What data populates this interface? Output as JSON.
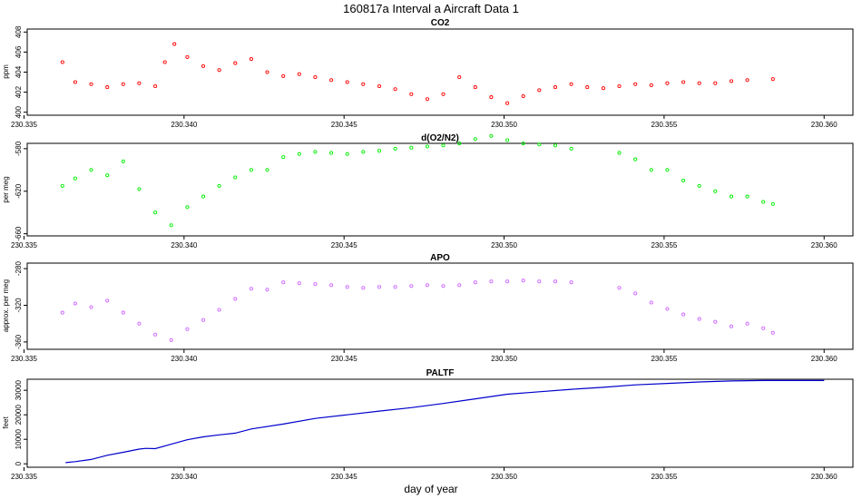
{
  "main_title": "160817a   Interval a Aircraft Data 1",
  "xlabel": "day of year",
  "chart_data": [
    {
      "type": "scatter",
      "title": "CO2",
      "ylabel": "ppm",
      "color": "#ff0000",
      "xlim": [
        230.3351,
        230.3609
      ],
      "ylim": [
        399.7,
        408.3
      ],
      "x_ticks": [
        230.335,
        230.34,
        230.345,
        230.35,
        230.355,
        230.36
      ],
      "x_tick_labels": [
        "230.335",
        "230.340",
        "230.345",
        "230.350",
        "230.355",
        "230.360"
      ],
      "y_ticks": [
        400,
        402,
        404,
        406,
        408
      ],
      "y_tick_labels": [
        "400",
        "402",
        "404",
        "406",
        "408"
      ],
      "grid": false,
      "x": [
        230.3362,
        230.3366,
        230.3371,
        230.3376,
        230.3381,
        230.3386,
        230.3391,
        230.3394,
        230.3397,
        230.3401,
        230.3406,
        230.3411,
        230.3416,
        230.3421,
        230.3426,
        230.3431,
        230.3436,
        230.3441,
        230.3446,
        230.3451,
        230.3456,
        230.3461,
        230.3466,
        230.3471,
        230.3476,
        230.3481,
        230.3486,
        230.3491,
        230.3496,
        230.3501,
        230.3506,
        230.3511,
        230.3516,
        230.3521,
        230.3526,
        230.3531,
        230.3536,
        230.3541,
        230.3546,
        230.3551,
        230.3556,
        230.3561,
        230.3566,
        230.3571,
        230.3576,
        230.3584
      ],
      "y": [
        405.0,
        403.0,
        402.8,
        402.5,
        402.8,
        402.9,
        402.6,
        405.0,
        406.8,
        405.5,
        404.6,
        404.2,
        404.9,
        405.3,
        404.0,
        403.6,
        403.8,
        403.5,
        403.2,
        403.0,
        402.8,
        402.6,
        402.3,
        401.8,
        401.3,
        401.8,
        403.5,
        402.5,
        401.5,
        400.9,
        401.6,
        402.2,
        402.5,
        402.8,
        402.5,
        402.4,
        402.6,
        402.8,
        402.7,
        402.9,
        403.0,
        402.9,
        402.9,
        403.1,
        403.2,
        403.3
      ]
    },
    {
      "type": "scatter",
      "title": "d(O2/N2)",
      "ylabel": "per meg",
      "color": "#00ee00",
      "xlim": [
        230.3351,
        230.3609
      ],
      "ylim": [
        -662,
        -575
      ],
      "x_ticks": [
        230.335,
        230.34,
        230.345,
        230.35,
        230.355,
        230.36
      ],
      "x_tick_labels": [
        "230.335",
        "230.340",
        "230.345",
        "230.350",
        "230.355",
        "230.360"
      ],
      "y_ticks": [
        -660,
        -620,
        -580
      ],
      "y_tick_labels": [
        "-660",
        "-620",
        "-580"
      ],
      "grid": false,
      "x": [
        230.3362,
        230.3366,
        230.3371,
        230.3376,
        230.3381,
        230.3386,
        230.3391,
        230.3396,
        230.3401,
        230.3406,
        230.3411,
        230.3416,
        230.3421,
        230.3426,
        230.3431,
        230.3436,
        230.3441,
        230.3446,
        230.3451,
        230.3456,
        230.3461,
        230.3466,
        230.3471,
        230.3476,
        230.3481,
        230.3486,
        230.3491,
        230.3496,
        230.3501,
        230.3506,
        230.3511,
        230.3516,
        230.3521,
        230.3526,
        230.3531,
        230.3536,
        230.3541,
        230.3546,
        230.3551,
        230.3556,
        230.3561,
        230.3566,
        230.3571,
        230.3576,
        230.3581,
        230.3584
      ],
      "y": [
        -615,
        -608,
        -600,
        -605,
        -592,
        -618,
        -640,
        -652,
        -635,
        -625,
        -615,
        -607,
        -600,
        -600,
        -588,
        -585,
        -583,
        -584,
        -585,
        -583,
        -582,
        -580,
        -579,
        -578,
        -577,
        -575,
        -571,
        -568,
        -572,
        -575,
        -576,
        -577,
        -580,
        null,
        null,
        -584,
        -590,
        -600,
        -600,
        -610,
        -615,
        -620,
        -625,
        -625,
        -630,
        -632
      ]
    },
    {
      "type": "scatter",
      "title": "APO",
      "ylabel": "approx. per meg",
      "color": "#cc66ff",
      "xlim": [
        230.3351,
        230.3609
      ],
      "ylim": [
        -368,
        -274
      ],
      "x_ticks": [
        230.335,
        230.34,
        230.345,
        230.35,
        230.355,
        230.36
      ],
      "x_tick_labels": [
        "230.335",
        "230.340",
        "230.345",
        "230.350",
        "230.355",
        "230.360"
      ],
      "y_ticks": [
        -360,
        -320,
        -280
      ],
      "y_tick_labels": [
        "-360",
        "-320",
        "-280"
      ],
      "grid": false,
      "x": [
        230.3362,
        230.3366,
        230.3371,
        230.3376,
        230.3381,
        230.3386,
        230.3391,
        230.3396,
        230.3401,
        230.3406,
        230.3411,
        230.3416,
        230.3421,
        230.3426,
        230.3431,
        230.3436,
        230.3441,
        230.3446,
        230.3451,
        230.3456,
        230.3461,
        230.3466,
        230.3471,
        230.3476,
        230.3481,
        230.3486,
        230.3491,
        230.3496,
        230.3501,
        230.3506,
        230.3511,
        230.3516,
        230.3521,
        230.3526,
        230.3531,
        230.3536,
        230.3541,
        230.3546,
        230.3551,
        230.3556,
        230.3561,
        230.3566,
        230.3571,
        230.3576,
        230.3581,
        230.3584
      ],
      "y": [
        -328,
        -318,
        -322,
        -315,
        -328,
        -340,
        -352,
        -358,
        -346,
        -336,
        -325,
        -313,
        -302,
        -303,
        -295,
        -296,
        -297,
        -298,
        -300,
        -301,
        -300,
        -300,
        -299,
        -298,
        -299,
        -298,
        -295,
        -294,
        -294,
        -293,
        -294,
        -294,
        -295,
        null,
        null,
        -301,
        -307,
        -317,
        -324,
        -330,
        -335,
        -338,
        -343,
        -340,
        -345,
        -350
      ]
    },
    {
      "type": "line",
      "title": "PALTF",
      "ylabel": "feet",
      "color": "#0000cc",
      "xlim": [
        230.3351,
        230.3609
      ],
      "ylim": [
        -1400,
        34500
      ],
      "x_ticks": [
        230.335,
        230.34,
        230.345,
        230.35,
        230.355,
        230.36
      ],
      "x_tick_labels": [
        "230.335",
        "230.340",
        "230.345",
        "230.350",
        "230.355",
        "230.360"
      ],
      "y_ticks": [
        0,
        10000,
        20000,
        30000
      ],
      "y_tick_labels": [
        "0",
        "10000",
        "20000",
        "30000"
      ],
      "grid": false,
      "x": [
        230.3363,
        230.3366,
        230.3371,
        230.3376,
        230.3381,
        230.3386,
        230.3388,
        230.3391,
        230.3396,
        230.3401,
        230.3406,
        230.3411,
        230.3416,
        230.3421,
        230.3431,
        230.3441,
        230.3451,
        230.3461,
        230.3471,
        230.3481,
        230.3491,
        230.3501,
        230.3511,
        230.3521,
        230.3531,
        230.3541,
        230.3551,
        230.3561,
        230.3571,
        230.3581,
        230.3591,
        230.36
      ],
      "y": [
        500,
        900,
        1800,
        3500,
        4700,
        6000,
        6300,
        6200,
        8000,
        9800,
        11000,
        11800,
        12500,
        14200,
        16200,
        18500,
        20000,
        21500,
        22900,
        24600,
        26500,
        28400,
        29400,
        30400,
        31200,
        32200,
        32800,
        33400,
        33800,
        34000,
        34000,
        34000
      ]
    }
  ]
}
